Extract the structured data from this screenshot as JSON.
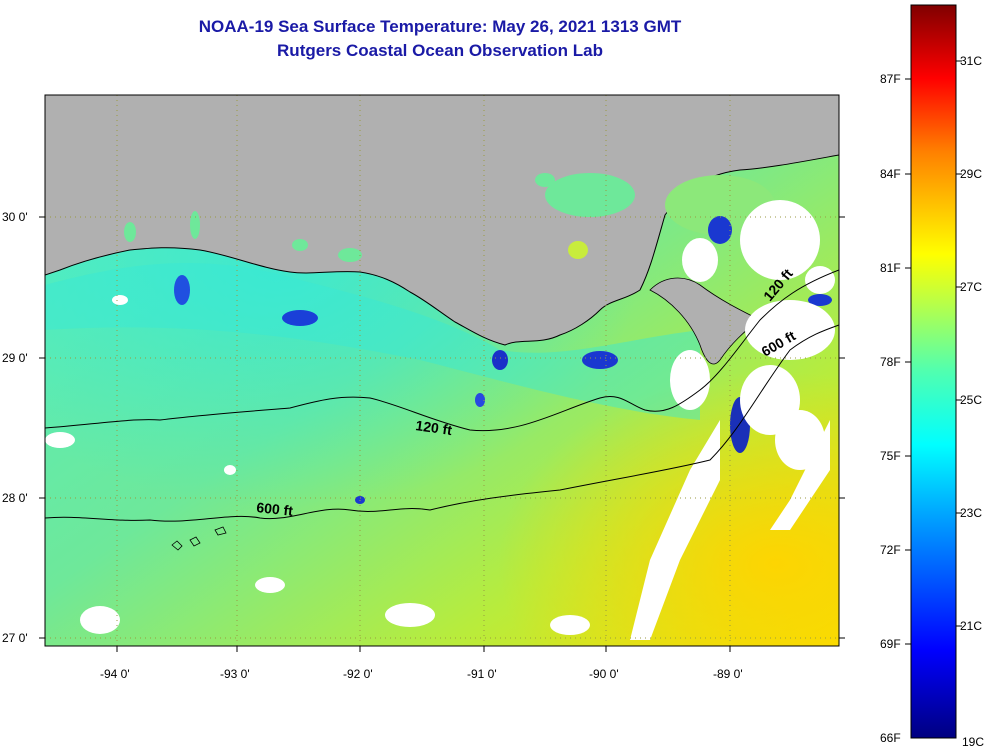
{
  "title": {
    "line1": "NOAA-19 Sea Surface Temperature:  May 26, 2021 1313 GMT",
    "line2": "Rutgers Coastal Ocean Observation Lab"
  },
  "map": {
    "lon_labels": [
      "-94 0'",
      "-93 0'",
      "-92 0'",
      "-91 0'",
      "-90 0'",
      "-89 0'"
    ],
    "lat_labels": [
      "30 0'",
      "29 0'",
      "28 0'",
      "27 0'"
    ],
    "contours": [
      {
        "label": "120 ft",
        "depth_ft": 120
      },
      {
        "label": "600 ft",
        "depth_ft": 600
      }
    ],
    "colors": {
      "land": "#b0b0b0",
      "water": "#4fe0b8",
      "coastline": "#000000",
      "cloud": "#ffffff"
    }
  },
  "colorbar": {
    "fahrenheit_labels": [
      "87F",
      "84F",
      "81F",
      "78F",
      "75F",
      "72F",
      "69F",
      "66F"
    ],
    "celsius_labels": [
      "31C",
      "29C",
      "27C",
      "25C",
      "23C",
      "21C",
      "19C"
    ],
    "range_c": [
      19,
      32
    ]
  }
}
